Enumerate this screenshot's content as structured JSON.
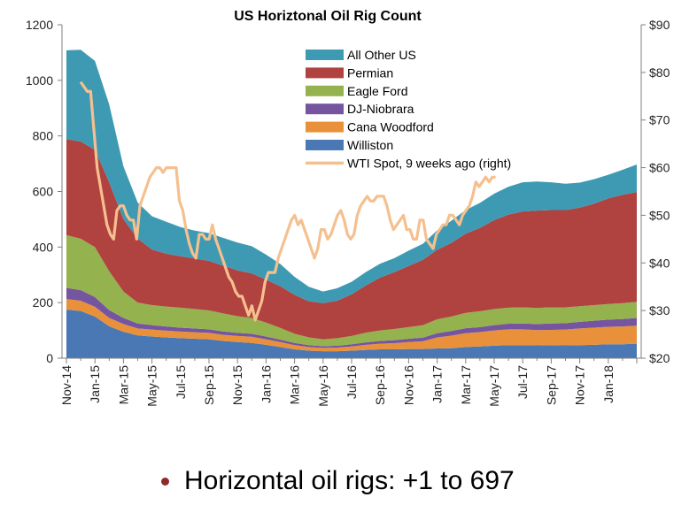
{
  "chart_data": {
    "type": "area",
    "stacked": true,
    "title": "US Horiztonal Oil Rig Count",
    "x_tick_labels": [
      "Nov-14",
      "Jan-15",
      "Mar-15",
      "May-15",
      "Jul-15",
      "Sep-15",
      "Nov-15",
      "Jan-16",
      "Mar-16",
      "May-16",
      "Jul-16",
      "Sep-16",
      "Nov-16",
      "Jan-17",
      "Mar-17",
      "May-17",
      "Jul-17",
      "Sep-17",
      "Nov-17",
      "Jan-18"
    ],
    "x_months": [
      "Nov-14",
      "Dec-14",
      "Jan-15",
      "Feb-15",
      "Mar-15",
      "Apr-15",
      "May-15",
      "Jun-15",
      "Jul-15",
      "Aug-15",
      "Sep-15",
      "Oct-15",
      "Nov-15",
      "Dec-15",
      "Jan-16",
      "Feb-16",
      "Mar-16",
      "Apr-16",
      "May-16",
      "Jun-16",
      "Jul-16",
      "Aug-16",
      "Sep-16",
      "Oct-16",
      "Nov-16",
      "Dec-16",
      "Jan-17",
      "Feb-17",
      "Mar-17",
      "Apr-17",
      "May-17",
      "Jun-17",
      "Jul-17",
      "Aug-17",
      "Sep-17",
      "Oct-17",
      "Nov-17",
      "Dec-17",
      "Jan-18",
      "Feb-18",
      "Mar-18"
    ],
    "y_left": {
      "min": 0,
      "max": 1200,
      "ticks": [
        "0",
        "200",
        "400",
        "600",
        "800",
        "1000",
        "1200"
      ]
    },
    "y_right": {
      "min": 20,
      "max": 90,
      "ticks": [
        "$20",
        "$30",
        "$40",
        "$50",
        "$60",
        "$70",
        "$80",
        "$90"
      ]
    },
    "series": [
      {
        "name": "Williston",
        "color": "#4a78b5",
        "values": [
          175,
          170,
          150,
          115,
          95,
          82,
          78,
          75,
          72,
          70,
          68,
          62,
          58,
          55,
          48,
          40,
          32,
          27,
          25,
          25,
          27,
          30,
          32,
          32,
          33,
          33,
          35,
          36,
          40,
          42,
          45,
          47,
          47,
          46,
          47,
          46,
          47,
          48,
          50,
          50,
          52
        ]
      },
      {
        "name": "Cana Woodford",
        "color": "#e8913a",
        "values": [
          38,
          37,
          35,
          30,
          28,
          25,
          25,
          24,
          24,
          23,
          23,
          22,
          22,
          22,
          20,
          18,
          15,
          13,
          12,
          13,
          15,
          18,
          20,
          22,
          25,
          28,
          40,
          45,
          50,
          52,
          55,
          57,
          57,
          55,
          55,
          57,
          60,
          62,
          63,
          64,
          65
        ]
      },
      {
        "name": "DJ-Niobrara",
        "color": "#7655a0",
        "values": [
          40,
          38,
          35,
          28,
          22,
          18,
          16,
          15,
          14,
          14,
          13,
          12,
          11,
          11,
          10,
          9,
          8,
          7,
          6,
          7,
          8,
          9,
          10,
          11,
          12,
          13,
          15,
          17,
          18,
          18,
          19,
          20,
          21,
          22,
          23,
          23,
          24,
          25,
          26,
          27,
          28
        ]
      },
      {
        "name": "Eagle Ford",
        "color": "#94b24e",
        "values": [
          190,
          185,
          180,
          140,
          95,
          75,
          72,
          72,
          72,
          70,
          68,
          65,
          60,
          57,
          50,
          42,
          33,
          28,
          25,
          27,
          30,
          35,
          38,
          40,
          42,
          45,
          50,
          52,
          55,
          57,
          58,
          58,
          58,
          58,
          58,
          57,
          56,
          56,
          56,
          57,
          58
        ]
      },
      {
        "name": "Permian",
        "color": "#b04240",
        "values": [
          345,
          350,
          350,
          320,
          260,
          230,
          200,
          190,
          185,
          182,
          178,
          172,
          165,
          160,
          155,
          150,
          140,
          130,
          130,
          135,
          150,
          170,
          190,
          205,
          220,
          235,
          250,
          265,
          285,
          300,
          320,
          335,
          345,
          350,
          350,
          350,
          355,
          365,
          380,
          390,
          395
        ]
      },
      {
        "name": "All Other US",
        "color": "#3e9ab3",
        "values": [
          320,
          330,
          320,
          280,
          190,
          130,
          120,
          115,
          105,
          100,
          100,
          100,
          100,
          98,
          90,
          80,
          65,
          52,
          42,
          45,
          45,
          48,
          50,
          50,
          55,
          58,
          70,
          80,
          85,
          90,
          95,
          100,
          105,
          105,
          100,
          95,
          90,
          88,
          85,
          90,
          99
        ]
      }
    ],
    "line_series": {
      "name": "WTI Spot, 9 weeks ago (right)",
      "axis": "right",
      "color": "#f5c08f",
      "x_start_month_index": 1,
      "weeks_per_month": 4.33,
      "values": [
        78,
        77,
        76,
        76,
        68,
        60,
        56,
        52,
        48,
        46,
        45,
        51,
        52,
        52,
        50,
        49,
        49,
        45,
        52,
        54,
        56,
        58,
        59,
        60,
        60,
        59,
        60,
        60,
        60,
        60,
        53,
        51,
        47,
        44,
        42,
        41,
        46,
        46,
        45,
        45,
        48,
        45,
        43,
        41,
        39,
        37,
        36,
        34,
        33,
        33,
        31,
        29,
        31,
        28,
        30,
        32,
        36,
        38,
        38,
        38,
        41,
        43,
        45,
        47,
        49,
        50,
        48,
        49,
        47,
        45,
        43,
        41,
        43,
        47,
        47,
        45,
        46,
        48,
        50,
        51,
        49,
        46,
        45,
        46,
        50,
        52,
        53,
        54,
        53,
        53,
        54,
        54,
        54,
        52,
        49,
        47,
        48,
        49,
        50,
        47,
        47,
        45,
        45,
        49,
        49,
        45,
        44,
        43,
        46,
        47,
        48,
        48,
        50,
        50,
        49,
        48,
        50,
        51,
        52,
        54,
        57,
        56,
        57,
        58,
        57,
        58,
        58
      ]
    },
    "legend": {
      "position": "top-center",
      "entries": [
        "All Other US",
        "Permian",
        "Eagle Ford",
        "DJ-Niobrara",
        "Cana Woodford",
        "Williston",
        "WTI Spot, 9 weeks ago (right)"
      ]
    },
    "grid": false
  },
  "caption": {
    "text": "Horizontal oil rigs: +1 to 697",
    "bullet_color": "#8e2a2a"
  }
}
